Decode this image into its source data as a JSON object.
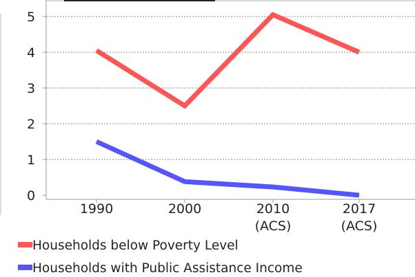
{
  "chart_data": {
    "type": "line",
    "categories": [
      "1990",
      "2000",
      "2010 (ACS)",
      "2017 (ACS)"
    ],
    "category_lines": [
      [
        "1990"
      ],
      [
        "2000"
      ],
      [
        "2010",
        "(ACS)"
      ],
      [
        "2017",
        "(ACS)"
      ]
    ],
    "series": [
      {
        "name": "Households below Poverty Level",
        "color": "#ff5555",
        "values": [
          4.05,
          2.5,
          5.05,
          4.0
        ]
      },
      {
        "name": "Households with Public Assistance Income",
        "color": "#5555ff",
        "values": [
          1.5,
          0.38,
          0.23,
          0.0
        ]
      }
    ],
    "yticks": [
      "0",
      "1",
      "2",
      "3",
      "4",
      "5"
    ],
    "ylim": [
      0,
      5.2
    ],
    "grid": true,
    "legend_position": "bottom-left",
    "gridline_color": "#8a8a8a",
    "axis_color": "#9a9a9a"
  }
}
